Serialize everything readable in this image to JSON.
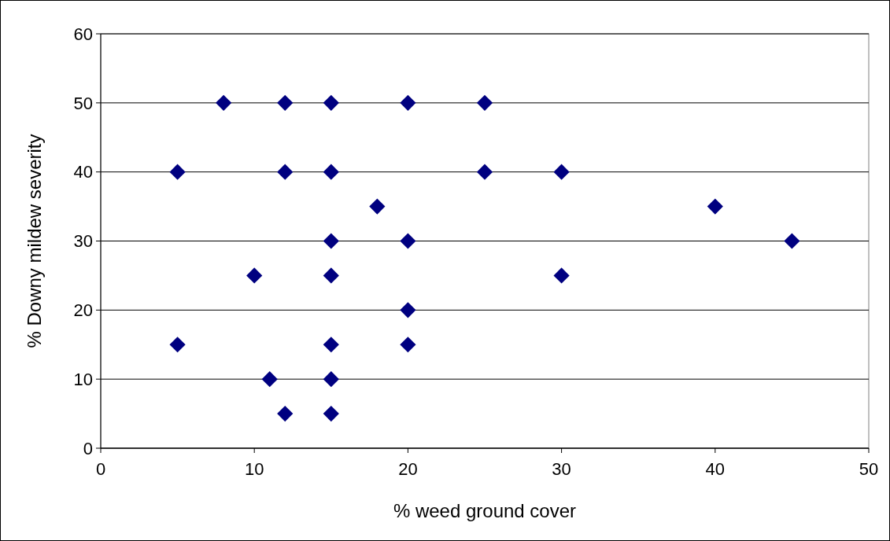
{
  "chart_data": {
    "type": "scatter",
    "xlabel": "% weed ground cover",
    "ylabel": "% Downy mildew severity",
    "series": [
      {
        "color": "#000080",
        "x": [
          8,
          12,
          15,
          20,
          25,
          5,
          12,
          15,
          25,
          30,
          18,
          40,
          15,
          20,
          45,
          10,
          15,
          30,
          20,
          5,
          15,
          20,
          11,
          15,
          12,
          15
        ],
        "values": [
          50,
          50,
          50,
          50,
          50,
          40,
          40,
          40,
          40,
          40,
          35,
          35,
          30,
          30,
          30,
          25,
          25,
          25,
          20,
          15,
          15,
          15,
          10,
          10,
          5,
          5
        ]
      }
    ],
    "xlim": [
      0,
      50
    ],
    "xticks": [
      0,
      10,
      20,
      30,
      40,
      50
    ],
    "ylim": [
      0,
      60
    ],
    "yticks": [
      0,
      10,
      20,
      30,
      40,
      50,
      60
    ],
    "grid": "y",
    "marker": "diamond"
  }
}
